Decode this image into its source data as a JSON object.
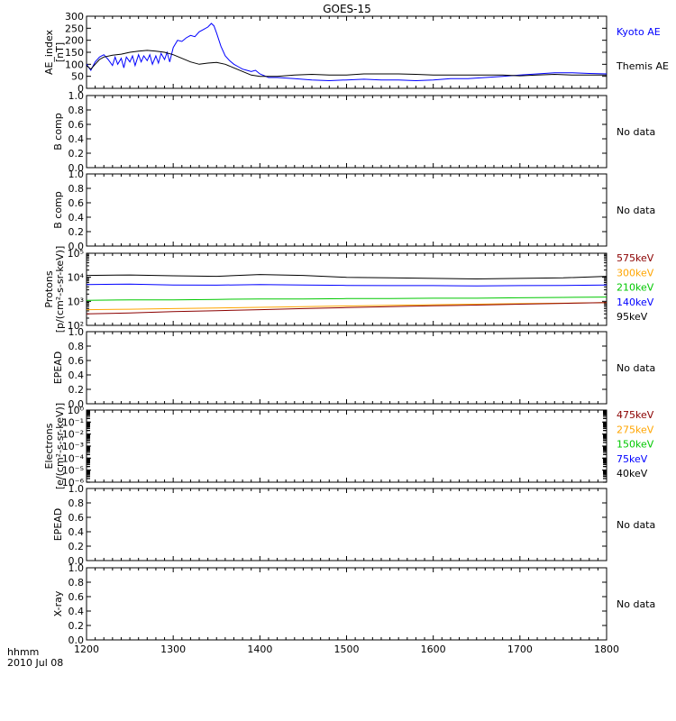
{
  "title": "GOES-15",
  "x_axis": {
    "label_line1": "hhmm",
    "label_line2": "2010 Jul 08",
    "ticks": [
      "1200",
      "1300",
      "1400",
      "1500",
      "1600",
      "1700",
      "1800"
    ],
    "range": [
      1200,
      1800
    ]
  },
  "panels": [
    {
      "id": "ae",
      "ylabel": [
        "AE_index",
        "[nT]"
      ],
      "scale": "linear",
      "ylim": [
        0,
        300
      ],
      "yticks": [
        "0",
        "50",
        "100",
        "150",
        "200",
        "250",
        "300"
      ],
      "legend": [
        {
          "label": "Kyoto AE",
          "color": "#0000ff"
        },
        {
          "label": "Themis AE",
          "color": "#000000"
        }
      ],
      "no_data": ""
    },
    {
      "id": "b1",
      "ylabel": [
        "B comp"
      ],
      "scale": "linear",
      "ylim": [
        0,
        1
      ],
      "yticks": [
        "0.0",
        "0.2",
        "0.4",
        "0.6",
        "0.8",
        "1.0"
      ],
      "legend": [],
      "no_data": "No data"
    },
    {
      "id": "b2",
      "ylabel": [
        "B comp"
      ],
      "scale": "linear",
      "ylim": [
        0,
        1
      ],
      "yticks": [
        "0.0",
        "0.2",
        "0.4",
        "0.6",
        "0.8",
        "1.0"
      ],
      "legend": [],
      "no_data": "No data"
    },
    {
      "id": "protons",
      "ylabel": [
        "Protons",
        "[p/(cm²-s-sr-keV)]"
      ],
      "scale": "log",
      "ylim": [
        100,
        100000
      ],
      "yticks": [
        "10²",
        "10³",
        "10⁴",
        "10⁵"
      ],
      "legend": [
        {
          "label": "575keV",
          "color": "#8b0000"
        },
        {
          "label": "300keV",
          "color": "#ffa500"
        },
        {
          "label": "210keV",
          "color": "#00c800"
        },
        {
          "label": "140keV",
          "color": "#0000ff"
        },
        {
          "label": "95keV",
          "color": "#000000"
        }
      ],
      "no_data": ""
    },
    {
      "id": "epead1",
      "ylabel": [
        "EPEAD"
      ],
      "scale": "linear",
      "ylim": [
        0,
        1
      ],
      "yticks": [
        "0.0",
        "0.2",
        "0.4",
        "0.6",
        "0.8",
        "1.0"
      ],
      "legend": [],
      "no_data": "No data"
    },
    {
      "id": "electrons",
      "ylabel": [
        "Electrons",
        "[e/(cm²-s-sr-keV)]"
      ],
      "scale": "log",
      "ylim": [
        1e-06,
        1
      ],
      "yticks": [
        "10⁻⁶",
        "10⁻⁵",
        "10⁻⁴",
        "10⁻³",
        "10⁻²",
        "10⁻¹",
        "10⁰"
      ],
      "legend": [
        {
          "label": "475keV",
          "color": "#8b0000"
        },
        {
          "label": "275keV",
          "color": "#ffa500"
        },
        {
          "label": "150keV",
          "color": "#00c800"
        },
        {
          "label": "75keV",
          "color": "#0000ff"
        },
        {
          "label": "40keV",
          "color": "#000000"
        }
      ],
      "no_data": ""
    },
    {
      "id": "epead2",
      "ylabel": [
        "EPEAD"
      ],
      "scale": "linear",
      "ylim": [
        0,
        1
      ],
      "yticks": [
        "0.0",
        "0.2",
        "0.4",
        "0.6",
        "0.8",
        "1.0"
      ],
      "legend": [],
      "no_data": "No data"
    },
    {
      "id": "xray",
      "ylabel": [
        "X-ray"
      ],
      "scale": "linear",
      "ylim": [
        0,
        1
      ],
      "yticks": [
        "0.0",
        "0.2",
        "0.4",
        "0.6",
        "0.8",
        "1.0"
      ],
      "legend": [],
      "no_data": "No data"
    }
  ],
  "chart_data": [
    {
      "type": "line",
      "panel": "ae",
      "ylabel": "AE_index [nT]",
      "ylim": [
        0,
        300
      ],
      "series": [
        {
          "name": "Kyoto AE",
          "color": "#0000ff",
          "x": [
            1200,
            1205,
            1210,
            1215,
            1220,
            1225,
            1230,
            1233,
            1236,
            1240,
            1243,
            1246,
            1250,
            1253,
            1256,
            1260,
            1263,
            1266,
            1270,
            1273,
            1276,
            1280,
            1283,
            1286,
            1290,
            1293,
            1296,
            1300,
            1305,
            1310,
            1315,
            1320,
            1325,
            1330,
            1335,
            1340,
            1344,
            1347,
            1350,
            1355,
            1360,
            1365,
            1370,
            1375,
            1380,
            1385,
            1390,
            1395,
            1400,
            1410,
            1420,
            1440,
            1460,
            1480,
            1500,
            1520,
            1540,
            1560,
            1580,
            1600,
            1620,
            1640,
            1660,
            1680,
            1700,
            1720,
            1740,
            1760,
            1780,
            1800
          ],
          "y": [
            100,
            75,
            110,
            130,
            140,
            120,
            95,
            130,
            100,
            125,
            85,
            130,
            110,
            135,
            95,
            140,
            110,
            135,
            115,
            140,
            100,
            135,
            105,
            145,
            120,
            150,
            110,
            170,
            200,
            195,
            210,
            220,
            215,
            235,
            245,
            255,
            270,
            260,
            230,
            175,
            135,
            115,
            100,
            90,
            80,
            75,
            70,
            75,
            60,
            45,
            45,
            40,
            35,
            32,
            35,
            38,
            35,
            35,
            32,
            35,
            40,
            40,
            45,
            50,
            55,
            60,
            65,
            65,
            62,
            60
          ]
        },
        {
          "name": "Themis AE",
          "color": "#000000",
          "x": [
            1200,
            1205,
            1210,
            1215,
            1220,
            1230,
            1240,
            1250,
            1260,
            1270,
            1280,
            1290,
            1300,
            1310,
            1320,
            1330,
            1340,
            1350,
            1360,
            1370,
            1380,
            1390,
            1400,
            1420,
            1440,
            1460,
            1480,
            1500,
            1520,
            1540,
            1560,
            1580,
            1600,
            1620,
            1640,
            1660,
            1680,
            1700,
            1720,
            1740,
            1760,
            1780,
            1800
          ],
          "y": [
            95,
            80,
            100,
            120,
            130,
            138,
            142,
            150,
            155,
            158,
            155,
            150,
            140,
            125,
            110,
            100,
            105,
            108,
            100,
            85,
            70,
            55,
            50,
            50,
            55,
            58,
            55,
            55,
            60,
            60,
            60,
            58,
            55,
            55,
            55,
            55,
            55,
            52,
            55,
            58,
            55,
            55,
            55
          ]
        }
      ]
    },
    {
      "type": "line",
      "panel": "protons",
      "ylabel": "Protons [p/(cm²-s-sr-keV)]",
      "scale": "log",
      "ylim": [
        100,
        100000
      ],
      "series": [
        {
          "name": "95keV",
          "color": "#000000",
          "x": [
            1200,
            1250,
            1300,
            1350,
            1400,
            1450,
            1500,
            1550,
            1600,
            1650,
            1700,
            1750,
            1800
          ],
          "y": [
            12000,
            12500,
            11500,
            11000,
            13000,
            12000,
            10000,
            9500,
            9000,
            8500,
            9000,
            9500,
            11000
          ]
        },
        {
          "name": "140keV",
          "color": "#0000ff",
          "x": [
            1200,
            1250,
            1300,
            1350,
            1400,
            1450,
            1500,
            1550,
            1600,
            1650,
            1700,
            1750,
            1800
          ],
          "y": [
            5000,
            5200,
            4800,
            4700,
            5000,
            4800,
            4600,
            4500,
            4500,
            4400,
            4500,
            4600,
            4800
          ]
        },
        {
          "name": "210keV",
          "color": "#00c800",
          "x": [
            1200,
            1250,
            1300,
            1350,
            1400,
            1450,
            1500,
            1550,
            1600,
            1650,
            1700,
            1750,
            1800
          ],
          "y": [
            1100,
            1150,
            1150,
            1200,
            1250,
            1250,
            1300,
            1300,
            1350,
            1350,
            1400,
            1450,
            1500
          ]
        },
        {
          "name": "300keV",
          "color": "#ffa500",
          "x": [
            1200,
            1250,
            1300,
            1350,
            1400,
            1450,
            1500,
            1550,
            1600,
            1650,
            1700,
            1750,
            1800
          ],
          "y": [
            450,
            470,
            500,
            530,
            560,
            600,
            640,
            680,
            720,
            760,
            800,
            840,
            880
          ]
        },
        {
          "name": "575keV",
          "color": "#8b0000",
          "x": [
            1200,
            1250,
            1300,
            1350,
            1400,
            1450,
            1500,
            1550,
            1600,
            1650,
            1700,
            1750,
            1800
          ],
          "y": [
            300,
            330,
            370,
            410,
            450,
            500,
            550,
            600,
            650,
            700,
            760,
            820,
            880
          ]
        }
      ]
    }
  ]
}
